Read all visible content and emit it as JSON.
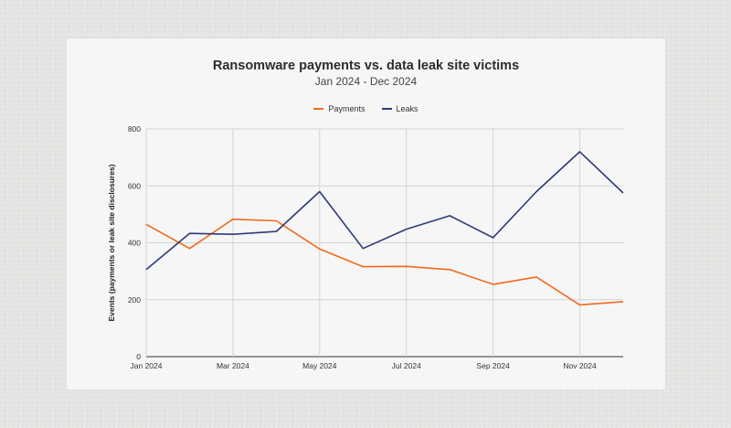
{
  "chart_data": {
    "type": "line",
    "title": "Ransomware payments vs. data leak site victims",
    "subtitle": "Jan 2024 - Dec 2024",
    "xlabel": "",
    "ylabel": "Events (payments or leak site disclosures)",
    "x": [
      "Jan 2024",
      "Feb 2024",
      "Mar 2024",
      "Apr 2024",
      "May 2024",
      "Jun 2024",
      "Jul 2024",
      "Aug 2024",
      "Sep 2024",
      "Oct 2024",
      "Nov 2024",
      "Dec 2024"
    ],
    "x_tick_labels": [
      "Jan 2024",
      "Mar 2024",
      "May 2024",
      "Jul 2024",
      "Sep 2024",
      "Nov 2024"
    ],
    "ylim": [
      0,
      800
    ],
    "y_ticks": [
      0,
      200,
      400,
      600,
      800
    ],
    "grid": true,
    "legend_position": "top-center",
    "series": [
      {
        "name": "Payments",
        "color": "#f26a1b",
        "values": [
          465,
          380,
          483,
          477,
          378,
          316,
          317,
          306,
          254,
          280,
          182,
          193
        ]
      },
      {
        "name": "Leaks",
        "color": "#2d3a78",
        "values": [
          306,
          433,
          430,
          440,
          580,
          380,
          448,
          495,
          418,
          580,
          720,
          575
        ]
      }
    ]
  }
}
